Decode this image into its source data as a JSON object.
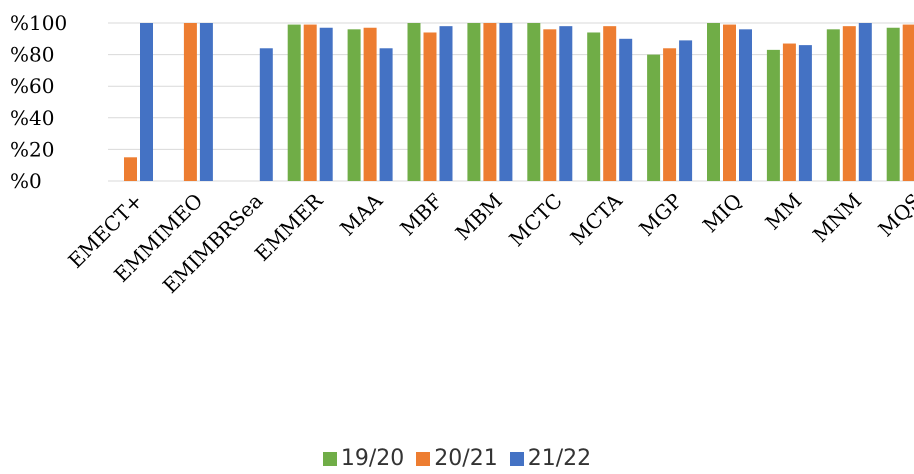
{
  "chart_data": {
    "type": "bar",
    "categories": [
      "EMECT+",
      "EMMIMEO",
      "EMIMBRSea",
      "EMMER",
      "MAA",
      "MBF",
      "MBM",
      "MCTC",
      "MCTA",
      "MGP",
      "MIQ",
      "MM",
      "MNM",
      "MQS"
    ],
    "series": [
      {
        "name": "19/20",
        "color": "#70AD47",
        "values": [
          null,
          null,
          null,
          99,
          96,
          100,
          100,
          100,
          94,
          80,
          100,
          83,
          96,
          97
        ]
      },
      {
        "name": "20/21",
        "color": "#ED7D31",
        "values": [
          15,
          100,
          null,
          99,
          97,
          94,
          100,
          96,
          98,
          84,
          99,
          87,
          98,
          99
        ]
      },
      {
        "name": "21/22",
        "color": "#4472C4",
        "values": [
          100,
          100,
          84,
          97,
          84,
          98,
          100,
          98,
          90,
          89,
          96,
          86,
          100,
          97
        ]
      }
    ],
    "y_ticks": [
      "%0",
      "%20",
      "%40",
      "%60",
      "%80",
      "%100"
    ],
    "ylim": [
      0,
      100
    ],
    "grid": true,
    "legend_position": "bottom"
  }
}
